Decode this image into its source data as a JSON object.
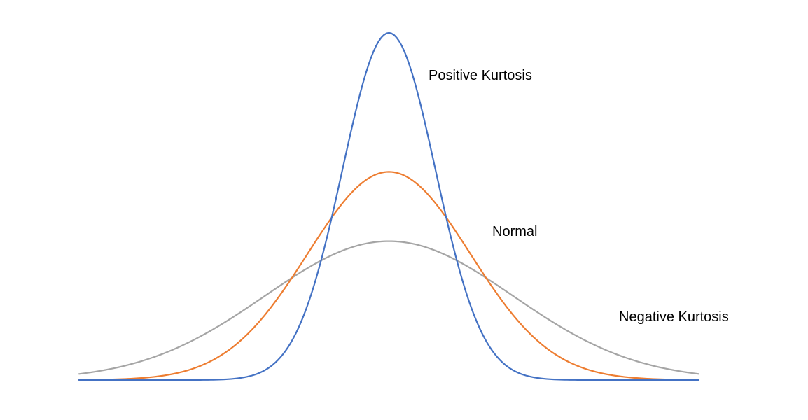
{
  "chart_data": {
    "type": "line",
    "title": "",
    "xlabel": "",
    "ylabel": "",
    "xlim": [
      -4,
      4
    ],
    "ylim": [
      0,
      1
    ],
    "grid": false,
    "axes_visible": false,
    "series": [
      {
        "name": "Negative Kurtosis",
        "color": "#A5A5A5",
        "shape": "normal",
        "peak": 0.4,
        "sigma": 1.6
      },
      {
        "name": "Normal",
        "color": "#ED7D31",
        "shape": "normal",
        "peak": 0.6,
        "sigma": 1.05
      },
      {
        "name": "Positive Kurtosis",
        "color": "#4472C4",
        "shape": "normal",
        "peak": 1.0,
        "sigma": 0.6
      }
    ]
  }
}
